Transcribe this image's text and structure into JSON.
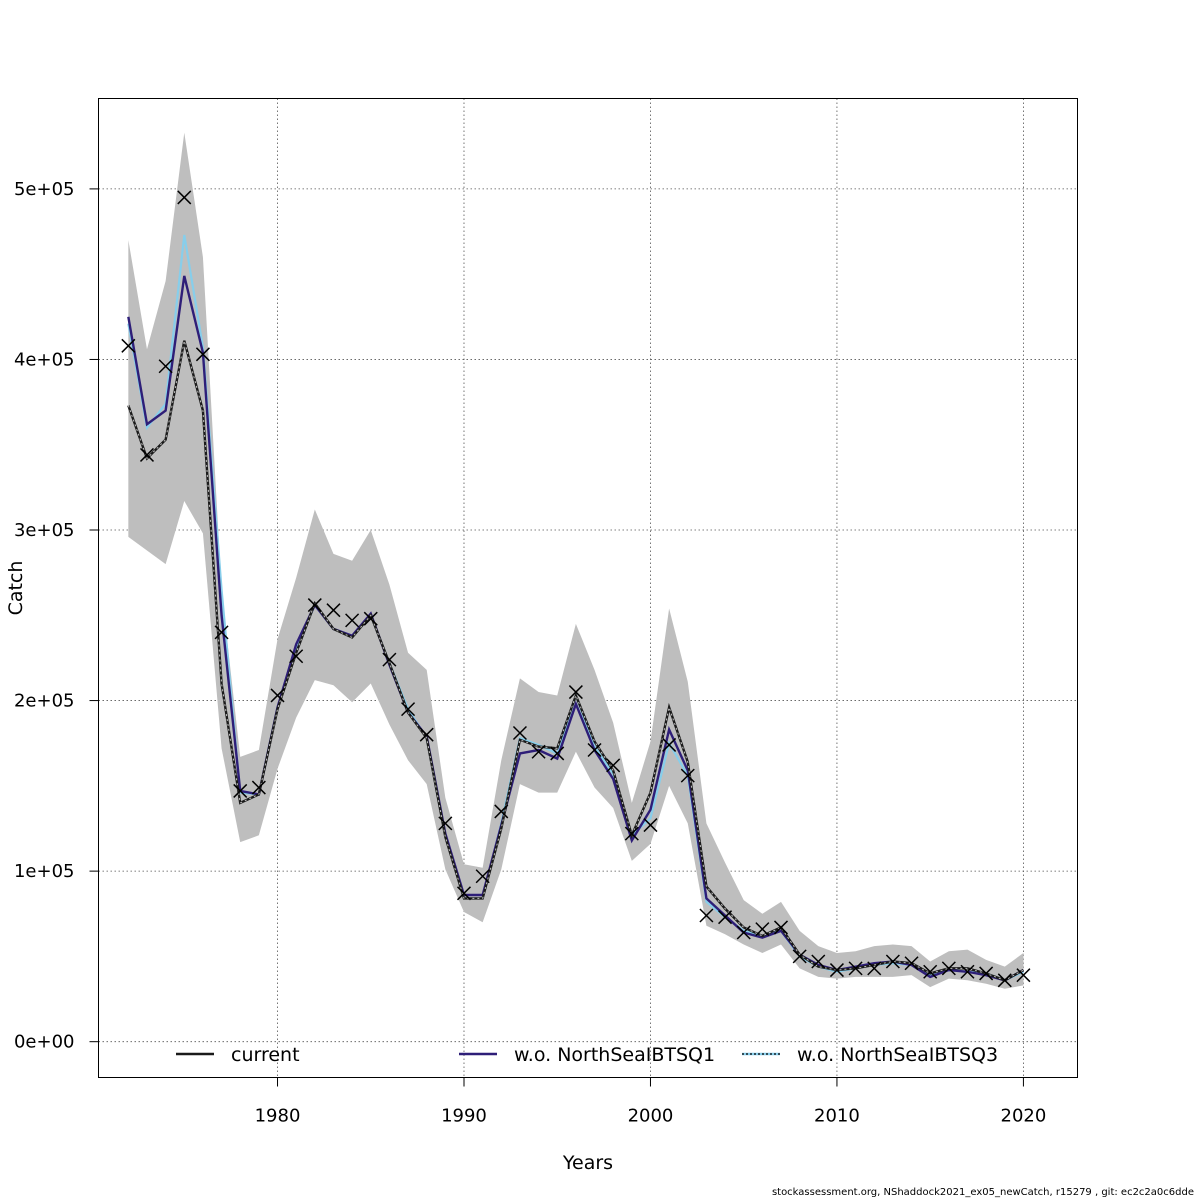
{
  "footer": "stockassessment.org, NShaddock2021_ex05_newCatch, r15279 , git: ec2c2a0c6dde",
  "chart_data": {
    "type": "line",
    "title": "",
    "xlabel": "Years",
    "ylabel": "Catch",
    "xlim": [
      1970.4,
      2022.9
    ],
    "ylim": [
      -21000,
      553000
    ],
    "xticks": [
      1980,
      1990,
      2000,
      2010,
      2020
    ],
    "yticks": [
      0,
      100000,
      200000,
      300000,
      400000,
      500000
    ],
    "ytick_labels": [
      "0e+00",
      "1e+05",
      "2e+05",
      "3e+05",
      "4e+05",
      "5e+05"
    ],
    "grid": true,
    "legend_position": "bottom",
    "colors": {
      "band": "#bebebe",
      "current": "#1a1a1a",
      "wo_q1": "#2e1e78",
      "wo_q3": "#87ceeb",
      "observed": "#000000"
    },
    "x": [
      1972,
      1973,
      1974,
      1975,
      1976,
      1977,
      1978,
      1979,
      1980,
      1981,
      1982,
      1983,
      1984,
      1985,
      1986,
      1987,
      1988,
      1989,
      1990,
      1991,
      1992,
      1993,
      1994,
      1995,
      1996,
      1997,
      1998,
      1999,
      2000,
      2001,
      2002,
      2003,
      2004,
      2005,
      2006,
      2007,
      2008,
      2009,
      2010,
      2011,
      2012,
      2013,
      2014,
      2015,
      2016,
      2017,
      2018,
      2019,
      2020
    ],
    "series": [
      {
        "name": "current",
        "role": "line",
        "values": [
          373000,
          342000,
          353000,
          411000,
          370000,
          210000,
          140000,
          145000,
          195000,
          228000,
          257000,
          242000,
          237000,
          250000,
          222000,
          193000,
          178000,
          120000,
          84000,
          84000,
          125000,
          177000,
          173000,
          172000,
          203000,
          176000,
          159000,
          121000,
          146000,
          196000,
          164000,
          91000,
          78000,
          67000,
          62000,
          67000,
          51000,
          44000,
          42000,
          43000,
          45000,
          47000,
          46000,
          40000,
          43000,
          43000,
          40000,
          36000,
          42000
        ]
      },
      {
        "name": "w.o. NorthSeaIBTSQ1",
        "role": "line",
        "values": [
          425000,
          362000,
          370000,
          449000,
          404000,
          250000,
          147000,
          145000,
          196000,
          233000,
          256000,
          242000,
          238000,
          251000,
          221000,
          193000,
          179000,
          122000,
          86000,
          86000,
          127000,
          169000,
          171000,
          166000,
          198000,
          171000,
          154000,
          118000,
          136000,
          183000,
          159000,
          84000,
          74000,
          64000,
          61000,
          65000,
          51000,
          45000,
          42000,
          44000,
          46000,
          47000,
          45000,
          38000,
          42000,
          41000,
          39000,
          36000,
          42000
        ]
      },
      {
        "name": "w.o. NorthSeaIBTSQ3",
        "role": "line",
        "values": [
          421000,
          360000,
          374000,
          473000,
          407000,
          265000,
          146000,
          145000,
          196000,
          231000,
          256000,
          242000,
          238000,
          250000,
          222000,
          195000,
          178000,
          121000,
          84000,
          84000,
          128000,
          178000,
          174000,
          169000,
          203000,
          173000,
          157000,
          121000,
          131000,
          175000,
          156000,
          82000,
          73000,
          65000,
          62000,
          65000,
          50000,
          44000,
          41000,
          43000,
          45000,
          46000,
          45000,
          39000,
          42000,
          41000,
          40000,
          36000,
          41000
        ]
      },
      {
        "name": "band_upper",
        "role": "band",
        "values": [
          470000,
          406000,
          446000,
          533000,
          460000,
          265000,
          167000,
          171000,
          236000,
          272000,
          312000,
          286000,
          282000,
          300000,
          268000,
          228000,
          218000,
          143000,
          104000,
          102000,
          165000,
          213000,
          205000,
          203000,
          245000,
          218000,
          187000,
          140000,
          176000,
          254000,
          211000,
          128000,
          105000,
          83000,
          75000,
          82000,
          65000,
          56000,
          52000,
          53000,
          56000,
          57000,
          56000,
          47000,
          53000,
          54000,
          48000,
          44000,
          52000
        ]
      },
      {
        "name": "band_lower",
        "role": "band",
        "values": [
          296000,
          288000,
          280000,
          317000,
          298000,
          172000,
          117000,
          121000,
          160000,
          190000,
          212000,
          209000,
          199000,
          210000,
          186000,
          165000,
          151000,
          101000,
          76000,
          70000,
          101000,
          151000,
          146000,
          146000,
          170000,
          149000,
          137000,
          106000,
          116000,
          150000,
          128000,
          68000,
          63000,
          57000,
          52000,
          57000,
          43000,
          38000,
          37000,
          38000,
          38000,
          38000,
          39000,
          32000,
          37000,
          36000,
          34000,
          31000,
          33000
        ]
      },
      {
        "name": "observed",
        "role": "points",
        "values": [
          408000,
          344000,
          396000,
          495000,
          403000,
          240000,
          147000,
          149000,
          203000,
          226000,
          256000,
          253000,
          247000,
          248000,
          224000,
          195000,
          180000,
          128000,
          87000,
          97000,
          135000,
          181000,
          170000,
          169000,
          205000,
          171000,
          162000,
          122000,
          127000,
          174000,
          156000,
          74000,
          73000,
          64000,
          66000,
          67000,
          50000,
          47000,
          42000,
          43000,
          43000,
          47000,
          46000,
          41000,
          43000,
          41000,
          40000,
          36000,
          39000
        ]
      }
    ]
  }
}
